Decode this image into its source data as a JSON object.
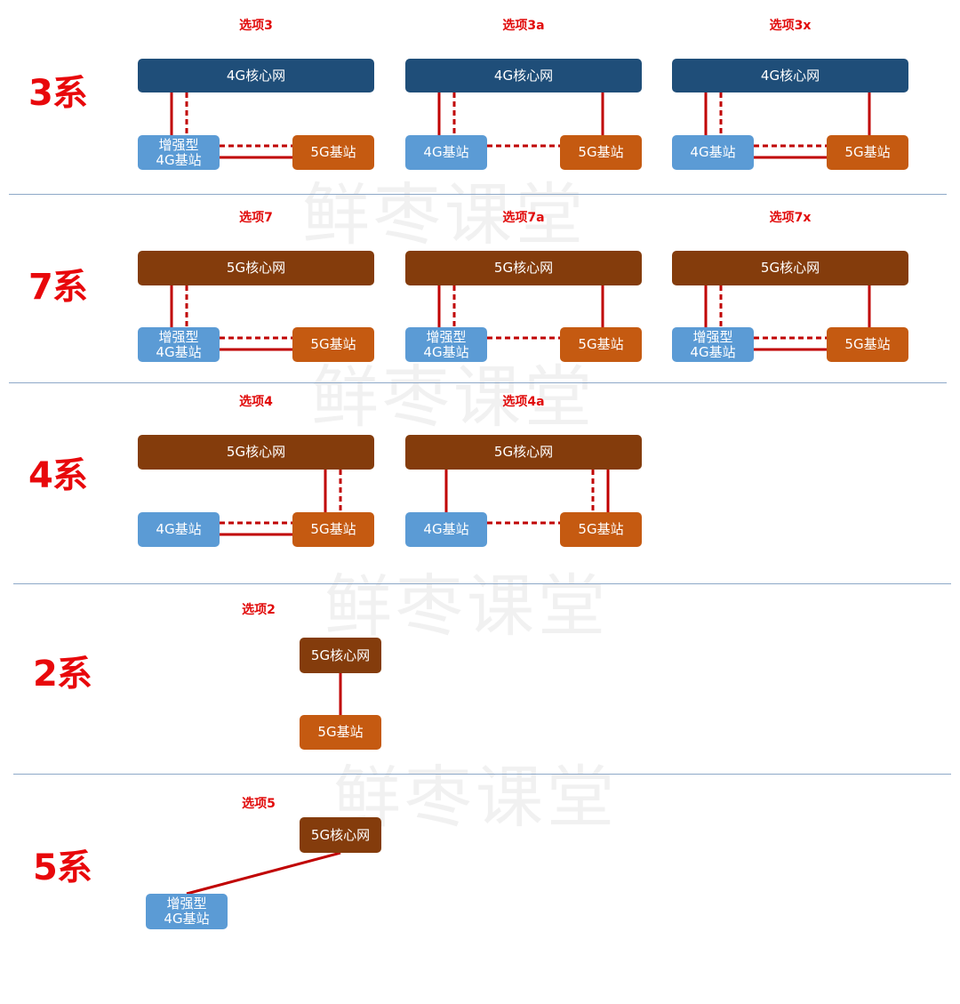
{
  "watermark": "鲜枣课堂",
  "colors": {
    "series_label": "#e8080b",
    "option_label": "#e10b0b",
    "core_4g": "#1f4e79",
    "core_5g": "#843c0c",
    "base_station_4g": "#5b9bd5",
    "base_station_5g": "#c55a11",
    "link": "#c00000",
    "separator": "#8ea9c8"
  },
  "series": [
    {
      "label": "3系",
      "options": [
        {
          "label": "选项3",
          "core": "4G核心网",
          "lte": "增强型\n4G基站",
          "nr": "5G基站"
        },
        {
          "label": "选项3a",
          "core": "4G核心网",
          "lte": "4G基站",
          "nr": "5G基站"
        },
        {
          "label": "选项3x",
          "core": "4G核心网",
          "lte": "4G基站",
          "nr": "5G基站"
        }
      ]
    },
    {
      "label": "7系",
      "options": [
        {
          "label": "选项7",
          "core": "5G核心网",
          "lte": "增强型\n4G基站",
          "nr": "5G基站"
        },
        {
          "label": "选项7a",
          "core": "5G核心网",
          "lte": "增强型\n4G基站",
          "nr": "5G基站"
        },
        {
          "label": "选项7x",
          "core": "5G核心网",
          "lte": "增强型\n4G基站",
          "nr": "5G基站"
        }
      ]
    },
    {
      "label": "4系",
      "options": [
        {
          "label": "选项4",
          "core": "5G核心网",
          "lte": "4G基站",
          "nr": "5G基站"
        },
        {
          "label": "选项4a",
          "core": "5G核心网",
          "lte": "4G基站",
          "nr": "5G基站"
        }
      ]
    },
    {
      "label": "2系",
      "options": [
        {
          "label": "选项2",
          "core": "5G核心网",
          "nr": "5G基站"
        }
      ]
    },
    {
      "label": "5系",
      "options": [
        {
          "label": "选项5",
          "core": "5G核心网",
          "lte": "增强型\n4G基站"
        }
      ]
    }
  ]
}
